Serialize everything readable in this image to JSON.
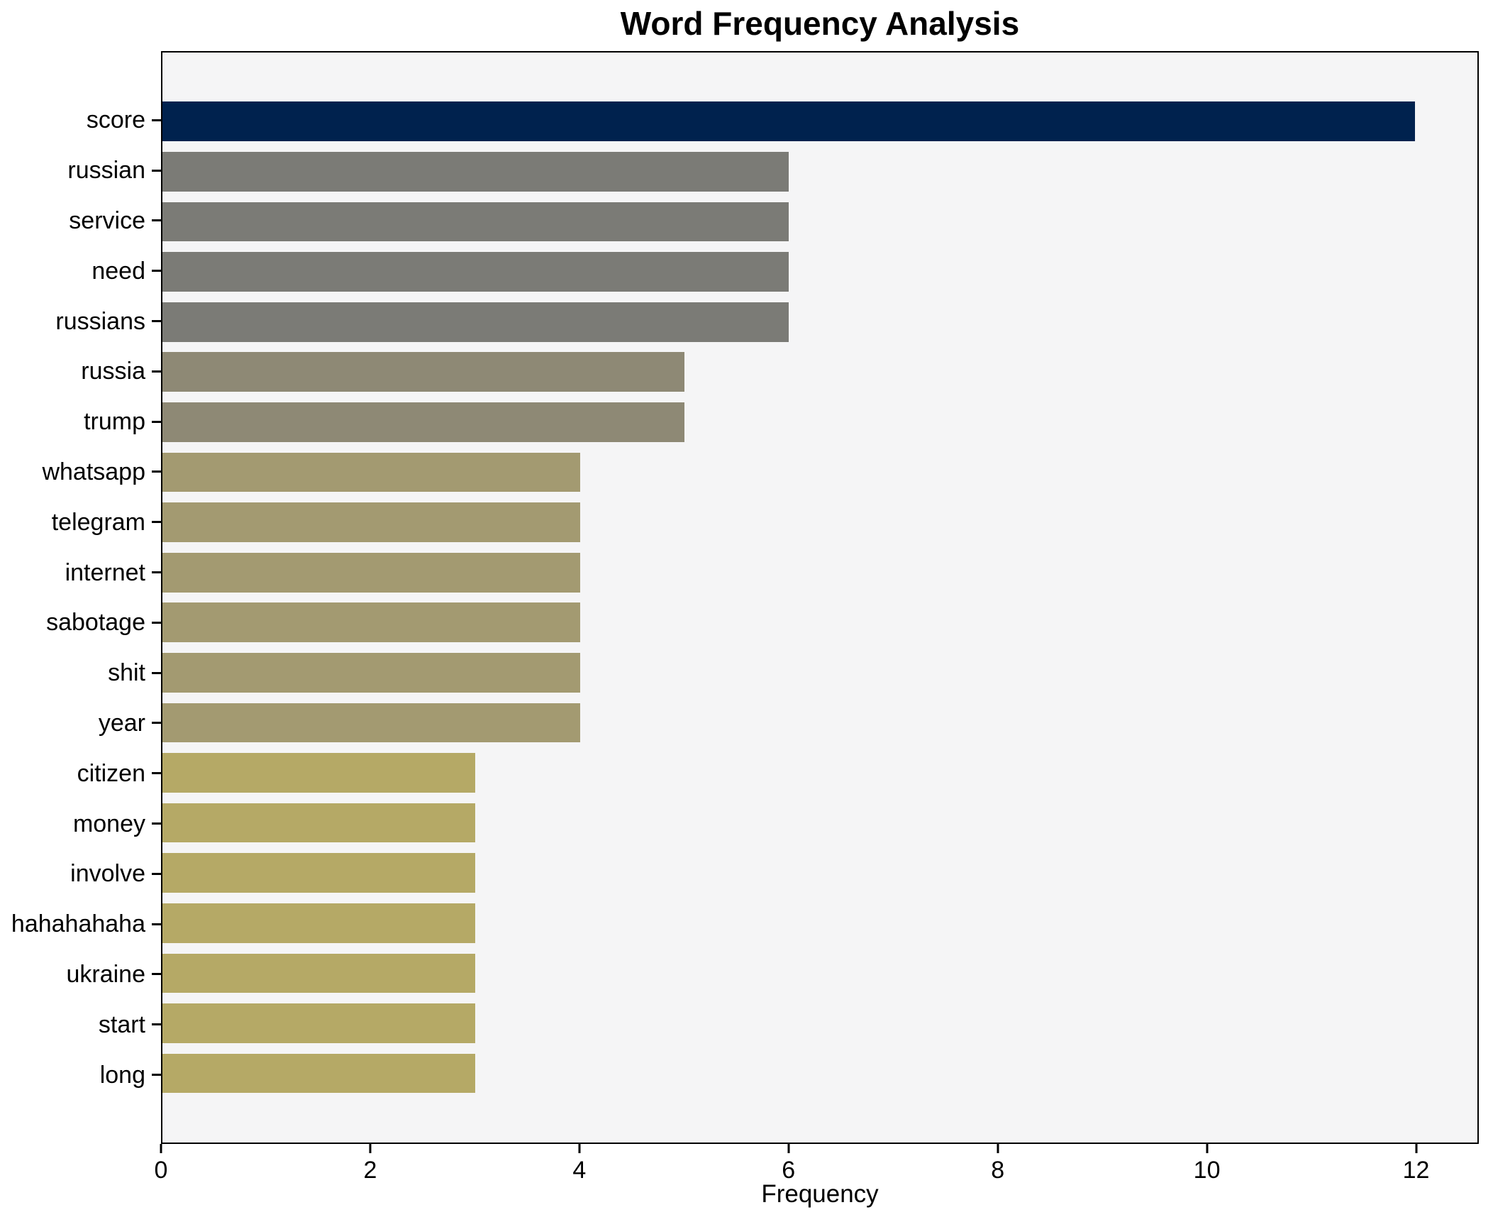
{
  "figure": {
    "background": "#ffffff",
    "plot_background": "#f5f5f6",
    "spine_color": "#000000",
    "text_color": "#000000"
  },
  "chart_data": {
    "type": "bar",
    "orientation": "horizontal",
    "title": "Word Frequency Analysis",
    "xlabel": "Frequency",
    "ylabel": "",
    "categories": [
      "score",
      "russian",
      "service",
      "need",
      "russians",
      "russia",
      "trump",
      "whatsapp",
      "telegram",
      "internet",
      "sabotage",
      "shit",
      "year",
      "citizen",
      "money",
      "involve",
      "hahahahaha",
      "ukraine",
      "start",
      "long"
    ],
    "values": [
      12,
      6,
      6,
      6,
      6,
      5,
      5,
      4,
      4,
      4,
      4,
      4,
      4,
      3,
      3,
      3,
      3,
      3,
      3,
      3
    ],
    "bar_colors": [
      "#00224e",
      "#7b7b76",
      "#7b7b76",
      "#7b7b76",
      "#7b7b76",
      "#8e8975",
      "#8e8975",
      "#a39a71",
      "#a39a71",
      "#a39a71",
      "#a39a71",
      "#a39a71",
      "#a39a71",
      "#b5a966",
      "#b5a966",
      "#b5a966",
      "#b5a966",
      "#b5a966",
      "#b5a966",
      "#b5a966"
    ],
    "value_color_map": {
      "12": "#00224e",
      "6": "#7b7b76",
      "5": "#8e8975",
      "4": "#a39a71",
      "3": "#b5a966"
    },
    "xticks": [
      0,
      2,
      4,
      6,
      8,
      10,
      12
    ],
    "xlim": [
      0,
      12.6
    ],
    "grid": false,
    "legend": null,
    "bar_relative_height": 0.79
  }
}
